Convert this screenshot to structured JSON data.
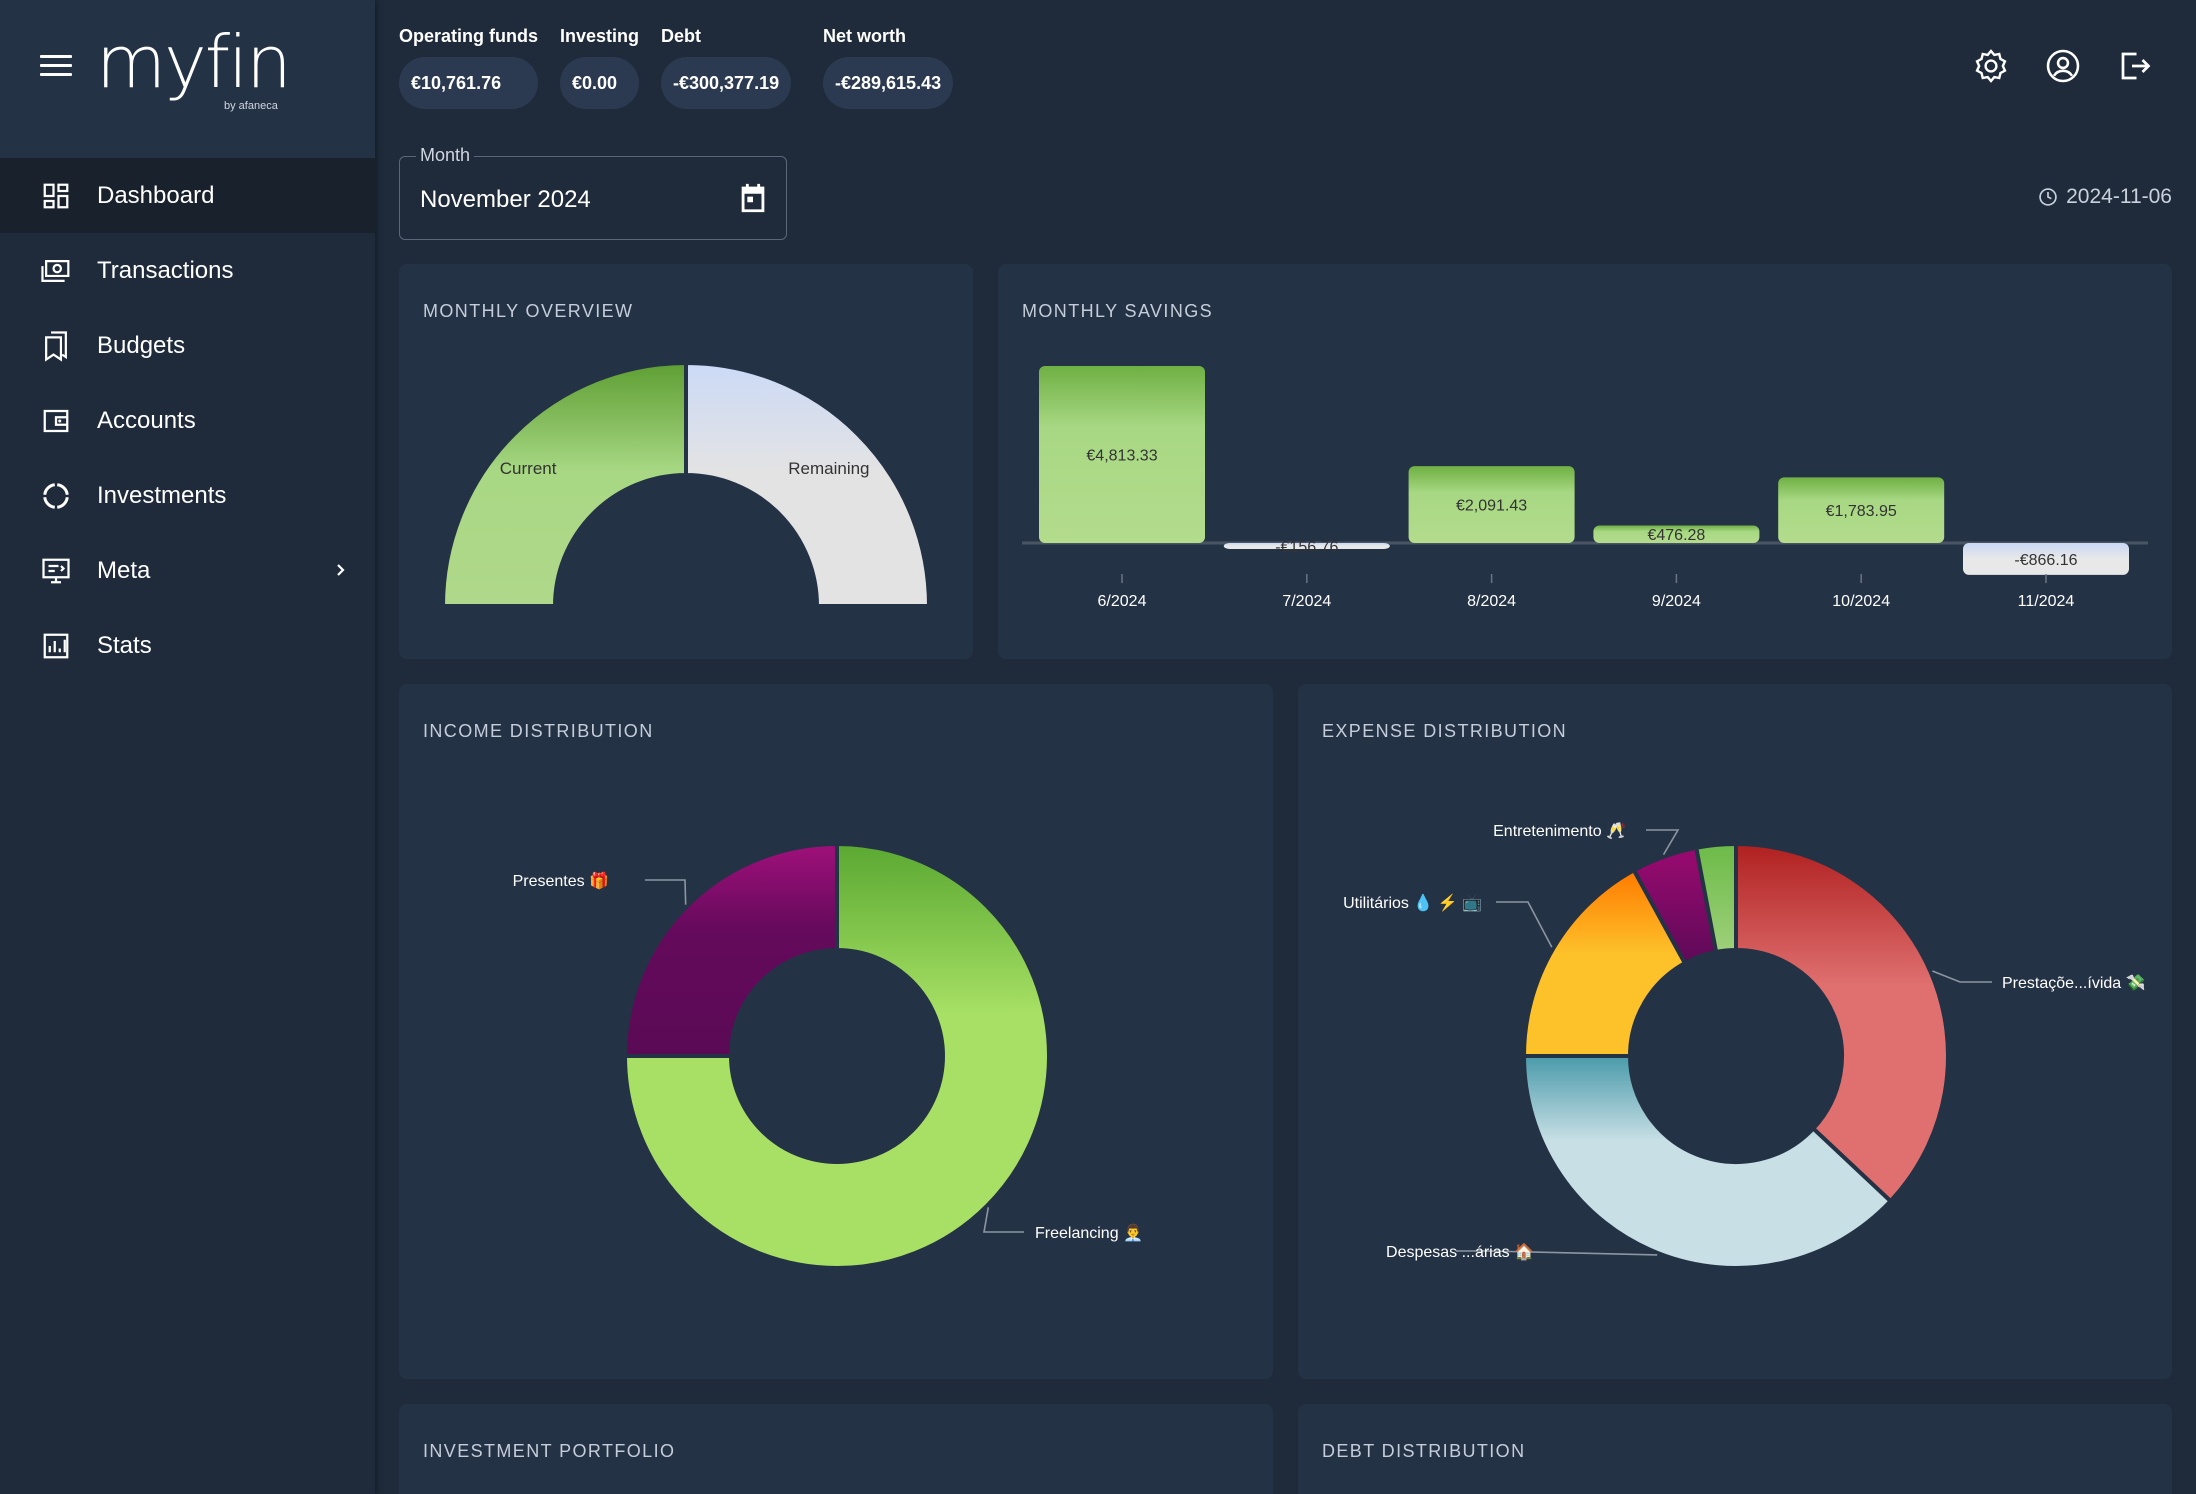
{
  "app": {
    "logo_text": "myfin",
    "logo_sub": "by afaneca"
  },
  "sidebar": {
    "items": [
      {
        "label": "Dashboard",
        "icon": "dashboard-icon",
        "active": true
      },
      {
        "label": "Transactions",
        "icon": "cash-icon"
      },
      {
        "label": "Budgets",
        "icon": "bookmarks-icon"
      },
      {
        "label": "Accounts",
        "icon": "wallet-icon"
      },
      {
        "label": "Investments",
        "icon": "donut-icon"
      },
      {
        "label": "Meta",
        "icon": "monitor-icon",
        "has_submenu": true
      },
      {
        "label": "Stats",
        "icon": "bar-chart-icon"
      }
    ]
  },
  "summary": {
    "operating_funds": {
      "label": "Operating funds",
      "value": "€10,761.76"
    },
    "investing": {
      "label": "Investing",
      "value": "€0.00"
    },
    "debt": {
      "label": "Debt",
      "value": "-€300,377.19"
    },
    "net_worth": {
      "label": "Net worth",
      "value": "-€289,615.43"
    }
  },
  "top_icons": [
    "settings-icon",
    "account-icon",
    "logout-icon"
  ],
  "month_picker": {
    "legend": "Month",
    "value": "November 2024"
  },
  "date_stamp": "2024-11-06",
  "cards": {
    "monthly_overview": "MONTHLY OVERVIEW",
    "monthly_savings": "MONTHLY SAVINGS",
    "income_distribution": "INCOME DISTRIBUTION",
    "expense_distribution": "EXPENSE DISTRIBUTION",
    "investment_portfolio": "INVESTMENT PORTFOLIO",
    "debt_distribution": "DEBT DISTRIBUTION"
  },
  "colors": {
    "background": "#1f2b3b",
    "card": "#243246",
    "green": "#a8d884",
    "green_dark": "#5ea83a",
    "light": "#e2e2e2",
    "purple": "#6a0a5e",
    "red": "#e07070",
    "light_blue": "#c8dfe5",
    "yellow": "#fdc12a"
  },
  "chart_data": [
    {
      "id": "monthly_overview",
      "type": "pie",
      "subtype": "half-donut",
      "labels": [
        "Current",
        "Remaining"
      ],
      "values": [
        50,
        50
      ]
    },
    {
      "id": "monthly_savings",
      "type": "bar",
      "categories": [
        "6/2024",
        "7/2024",
        "8/2024",
        "9/2024",
        "10/2024",
        "11/2024"
      ],
      "values": [
        4813.33,
        -156.76,
        2091.43,
        476.28,
        1783.95,
        -866.16
      ],
      "data_labels": [
        "€4,813.33",
        "-€156.76",
        "€2,091.43",
        "€476.28",
        "€1,783.95",
        "-€866.16"
      ]
    },
    {
      "id": "income_distribution",
      "type": "pie",
      "subtype": "donut",
      "labels": [
        "Freelancing 👨‍💼",
        "Presentes 🎁"
      ],
      "values": [
        75,
        25
      ]
    },
    {
      "id": "expense_distribution",
      "type": "pie",
      "subtype": "donut",
      "labels": [
        "Prestaçõe...ívida 💸",
        "Despesas ...árias 🏠",
        "Utilitários 💧 ⚡ 📺",
        "Entretenimento 🥂",
        ""
      ],
      "values": [
        37,
        38,
        17,
        5,
        3
      ]
    }
  ]
}
